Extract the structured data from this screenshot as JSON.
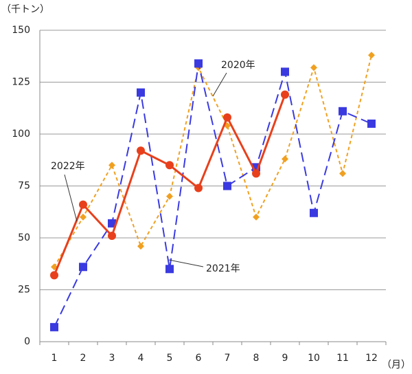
{
  "chart_data": {
    "type": "line",
    "y_label": "（千トン）",
    "x_label": "（月）",
    "categories": [
      "1",
      "2",
      "3",
      "4",
      "5",
      "6",
      "7",
      "8",
      "9",
      "10",
      "11",
      "12"
    ],
    "series": [
      {
        "name": "2020年",
        "color": "#f0a020",
        "marker": "diamond",
        "dash": "short",
        "values": [
          36,
          60,
          85,
          46,
          70,
          132,
          104,
          60,
          88,
          132,
          81,
          138
        ]
      },
      {
        "name": "2021年",
        "color": "#3a3ae0",
        "marker": "square",
        "dash": "long",
        "values": [
          7,
          36,
          57,
          120,
          35,
          134,
          75,
          84,
          130,
          62,
          111,
          105
        ]
      },
      {
        "name": "2022年",
        "color": "#e8401c",
        "marker": "circle",
        "dash": "solid",
        "values": [
          32,
          66,
          51,
          92,
          85,
          74,
          108,
          81,
          119,
          null,
          null,
          null
        ]
      }
    ],
    "ylim": [
      0,
      150
    ],
    "yticks": [
      0,
      25,
      50,
      75,
      100,
      125,
      150
    ],
    "grid": true
  }
}
